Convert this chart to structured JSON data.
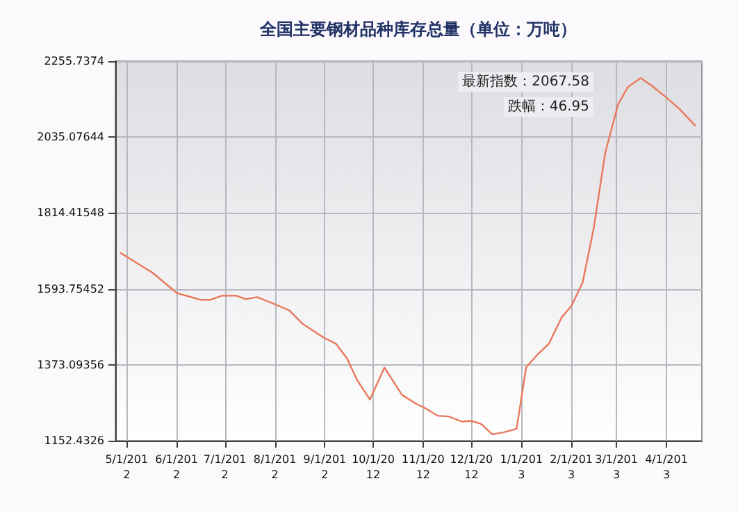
{
  "chart_data": {
    "type": "line",
    "title": "全国主要钢材品种库存总量（单位：万吨）",
    "x": [
      "2012-04-27",
      "2012-05-17",
      "2012-05-28",
      "2012-06-01",
      "2012-06-16",
      "2012-06-22",
      "2012-06-29",
      "2012-07-08",
      "2012-07-14",
      "2012-07-21",
      "2012-07-31",
      "2012-08-10",
      "2012-08-18",
      "2012-08-31",
      "2012-09-08",
      "2012-09-15",
      "2012-09-21",
      "2012-09-29",
      "2012-10-08",
      "2012-10-19",
      "2012-10-28",
      "2012-11-03",
      "2012-11-10",
      "2012-11-17",
      "2012-11-25",
      "2012-12-01",
      "2012-12-07",
      "2012-12-14",
      "2012-12-21",
      "2012-12-29",
      "2013-01-04",
      "2013-01-11",
      "2013-01-18",
      "2013-01-26",
      "2013-02-01",
      "2013-02-08",
      "2013-02-15",
      "2013-02-22",
      "2013-03-02",
      "2013-03-08",
      "2013-03-16",
      "2013-03-23",
      "2013-04-01",
      "2013-04-09",
      "2013-04-19"
    ],
    "series": [
      {
        "color": "#e8785a",
        "values": [
          1699,
          1641,
          1598,
          1582,
          1562,
          1562,
          1574,
          1574,
          1564,
          1570,
          1551,
          1531,
          1493,
          1453,
          1434,
          1390,
          1329,
          1272,
          1365,
          1285,
          1259,
          1245,
          1225,
          1223,
          1208,
          1210,
          1201,
          1171,
          1177,
          1187,
          1366,
          1403,
          1434,
          1511,
          1544,
          1612,
          1773,
          1989,
          2130,
          2180,
          2207,
          2184,
          2150,
          2117,
          2068
        ]
      }
    ],
    "xlim": [
      "2012-04-24",
      "2013-04-23"
    ],
    "xticks": [
      {
        "value": "2012-05-01",
        "label": "5/1/201\n2"
      },
      {
        "value": "2012-06-01",
        "label": "6/1/201\n2"
      },
      {
        "value": "2012-07-01",
        "label": "7/1/201\n2"
      },
      {
        "value": "2012-08-01",
        "label": "8/1/201\n2"
      },
      {
        "value": "2012-09-01",
        "label": "9/1/201\n2"
      },
      {
        "value": "2012-10-01",
        "label": "10/1/20\n12"
      },
      {
        "value": "2012-11-01",
        "label": "11/1/20\n12"
      },
      {
        "value": "2012-12-01",
        "label": "12/1/20\n12"
      },
      {
        "value": "2013-01-01",
        "label": "1/1/201\n3"
      },
      {
        "value": "2013-02-01",
        "label": "2/1/201\n3"
      },
      {
        "value": "2013-03-01",
        "label": "3/1/201\n3"
      },
      {
        "value": "2013-04-01",
        "label": "4/1/201\n3"
      }
    ],
    "ylim": [
      1152.4326,
      2255.7374
    ],
    "yticks": [
      1152.4326,
      1373.09356,
      1593.75452,
      1814.41548,
      2035.07644,
      2255.7374
    ],
    "grid": true,
    "marker": "none",
    "line_style": "solid",
    "annotations": [
      "最新指数：2067.58",
      "跌幅：46.95"
    ]
  }
}
